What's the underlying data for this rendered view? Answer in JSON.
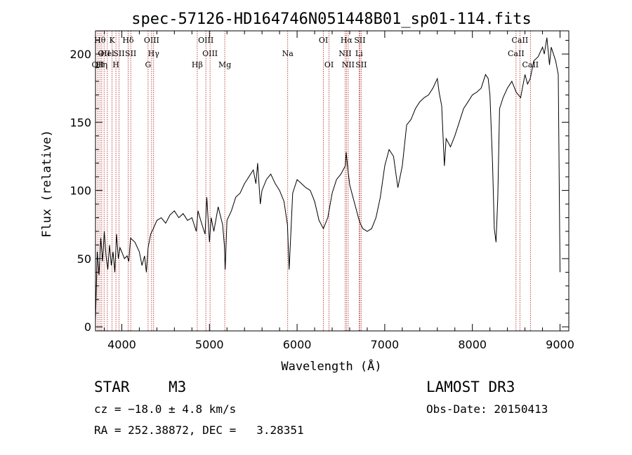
{
  "chart_data": {
    "type": "line",
    "title": "spec-57126-HD164746N051448B01_sp01-114.fits",
    "xlabel": "Wavelength (Å)",
    "ylabel": "Flux (relative)",
    "xlim": [
      3700,
      9100
    ],
    "ylim": [
      -3,
      217
    ],
    "xticks": [
      4000,
      5000,
      6000,
      7000,
      8000,
      9000
    ],
    "yticks": [
      0,
      50,
      100,
      150,
      200
    ],
    "grid": false,
    "legend": "none",
    "line_color": "#000000",
    "marker_color": "#b22222",
    "series": [
      {
        "x": [
          3700,
          3720,
          3740,
          3760,
          3780,
          3800,
          3820,
          3840,
          3860,
          3880,
          3900,
          3920,
          3940,
          3960,
          3980,
          4000,
          4030,
          4060,
          4080,
          4100,
          4150,
          4200,
          4230,
          4260,
          4280,
          4300,
          4330,
          4360,
          4400,
          4450,
          4500,
          4550,
          4600,
          4650,
          4700,
          4750,
          4800,
          4850,
          4870,
          4900,
          4930,
          4950,
          4970,
          5000,
          5020,
          5050,
          5100,
          5150,
          5170,
          5180,
          5200,
          5250,
          5300,
          5350,
          5400,
          5450,
          5500,
          5530,
          5550,
          5580,
          5600,
          5650,
          5700,
          5750,
          5800,
          5850,
          5890,
          5910,
          5950,
          6000,
          6050,
          6100,
          6150,
          6200,
          6250,
          6300,
          6350,
          6400,
          6450,
          6500,
          6550,
          6560,
          6580,
          6600,
          6650,
          6700,
          6720,
          6750,
          6800,
          6850,
          6900,
          6950,
          7000,
          7050,
          7100,
          7150,
          7200,
          7250,
          7300,
          7350,
          7400,
          7450,
          7500,
          7550,
          7600,
          7620,
          7650,
          7680,
          7700,
          7750,
          7800,
          7850,
          7900,
          7950,
          8000,
          8050,
          8100,
          8150,
          8180,
          8200,
          8230,
          8250,
          8270,
          8290,
          8310,
          8350,
          8400,
          8450,
          8500,
          8550,
          8600,
          8630,
          8660,
          8700,
          8750,
          8800,
          8820,
          8850,
          8880,
          8900,
          8950,
          8980,
          9000
        ],
        "values": [
          4,
          55,
          38,
          65,
          48,
          70,
          52,
          42,
          60,
          45,
          55,
          40,
          68,
          50,
          58,
          55,
          50,
          52,
          48,
          65,
          62,
          55,
          45,
          52,
          40,
          58,
          68,
          72,
          78,
          80,
          76,
          82,
          85,
          80,
          83,
          78,
          80,
          70,
          85,
          78,
          72,
          68,
          95,
          62,
          80,
          70,
          88,
          75,
          60,
          42,
          78,
          85,
          95,
          98,
          105,
          110,
          115,
          105,
          120,
          90,
          100,
          108,
          112,
          105,
          100,
          92,
          75,
          42,
          98,
          108,
          105,
          102,
          100,
          92,
          78,
          72,
          80,
          98,
          108,
          112,
          118,
          128,
          115,
          104,
          92,
          80,
          76,
          72,
          70,
          72,
          80,
          95,
          118,
          130,
          125,
          102,
          118,
          148,
          152,
          160,
          165,
          168,
          170,
          175,
          182,
          172,
          162,
          118,
          138,
          132,
          140,
          150,
          160,
          165,
          170,
          172,
          175,
          185,
          182,
          170,
          120,
          72,
          62,
          95,
          160,
          168,
          175,
          180,
          172,
          168,
          185,
          178,
          182,
          195,
          198,
          205,
          200,
          212,
          192,
          205,
          195,
          185,
          40
        ]
      }
    ],
    "line_markers": [
      {
        "x": 3727,
        "label": "OII",
        "row": 2
      },
      {
        "x": 3750,
        "label": "Hθ",
        "row": 0
      },
      {
        "x": 3771,
        "label": "Hη",
        "row": 2
      },
      {
        "x": 3798,
        "label": "OII",
        "row": 1
      },
      {
        "x": 3835,
        "label": "Hel",
        "row": 1
      },
      {
        "x": 3889,
        "label": "K",
        "row": 0
      },
      {
        "x": 3933,
        "label": "H",
        "row": 2
      },
      {
        "x": 3968,
        "label": "SII",
        "row": 1
      },
      {
        "x": 4072,
        "label": "Hδ",
        "row": 0
      },
      {
        "x": 4102,
        "label": "SII",
        "row": 1
      },
      {
        "x": 4300,
        "label": "G",
        "row": 2
      },
      {
        "x": 4340,
        "label": "OIII",
        "row": 0
      },
      {
        "x": 4363,
        "label": "Hγ",
        "row": 1
      },
      {
        "x": 4861,
        "label": "Hβ",
        "row": 2
      },
      {
        "x": 4959,
        "label": "OIII",
        "row": 0
      },
      {
        "x": 5007,
        "label": "OIII",
        "row": 1
      },
      {
        "x": 5175,
        "label": "Mg",
        "row": 2
      },
      {
        "x": 5893,
        "label": "Na",
        "row": 1
      },
      {
        "x": 6300,
        "label": "OI",
        "row": 0
      },
      {
        "x": 6364,
        "label": "OI",
        "row": 2
      },
      {
        "x": 6548,
        "label": "NII",
        "row": 1
      },
      {
        "x": 6563,
        "label": "Hα",
        "row": 0
      },
      {
        "x": 6583,
        "label": "NII",
        "row": 2
      },
      {
        "x": 6707,
        "label": "Li",
        "row": 1
      },
      {
        "x": 6716,
        "label": "SII",
        "row": 0
      },
      {
        "x": 6731,
        "label": "SII",
        "row": 2
      },
      {
        "x": 8498,
        "label": "CaII",
        "row": 1
      },
      {
        "x": 8542,
        "label": "CaII",
        "row": 0
      },
      {
        "x": 8662,
        "label": "CaII",
        "row": 2
      }
    ]
  },
  "info": {
    "object_class": "STAR",
    "subclass": "M3",
    "survey": "LAMOST DR3",
    "redshift": "cz = −18.0 ± 4.8 km/s",
    "obs_date": "Obs-Date: 20150413",
    "coords": "RA = 252.38872, DEC =   3.28351"
  }
}
